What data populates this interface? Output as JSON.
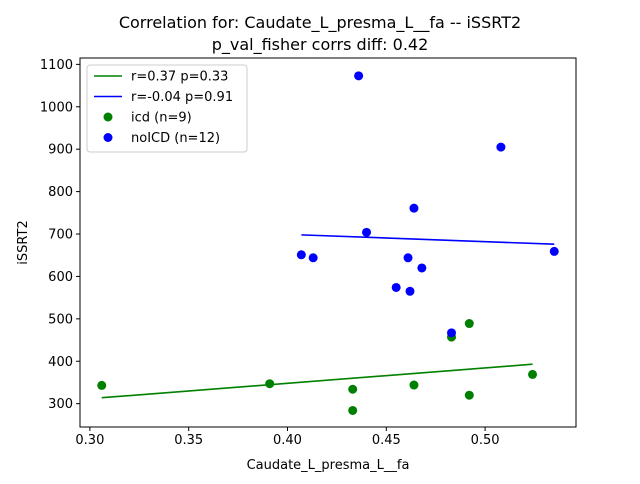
{
  "chart_data": {
    "type": "scatter",
    "title": "Correlation for: Caudate_L_presma_L__fa -- iSSRT2",
    "subtitle": "p_val_fisher corrs diff: 0.42",
    "xlabel": "Caudate_L_presma_L__fa",
    "ylabel": "iSSRT2",
    "xlim": [
      0.295,
      0.546
    ],
    "ylim": [
      245,
      1115
    ],
    "x_ticks": [
      0.3,
      0.35,
      0.4,
      0.45,
      0.5
    ],
    "x_tick_labels": [
      "0.30",
      "0.35",
      "0.40",
      "0.45",
      "0.50"
    ],
    "y_ticks": [
      300,
      400,
      500,
      600,
      700,
      800,
      900,
      1000,
      1100
    ],
    "y_tick_labels": [
      "300",
      "400",
      "500",
      "600",
      "700",
      "800",
      "900",
      "1000",
      "1100"
    ],
    "grid": false,
    "legend_position": "top-left",
    "series": [
      {
        "name": "icd (n=9)",
        "color": "#008000",
        "points": [
          [
            0.306,
            343
          ],
          [
            0.391,
            347
          ],
          [
            0.433,
            334
          ],
          [
            0.433,
            284
          ],
          [
            0.464,
            344
          ],
          [
            0.483,
            457
          ],
          [
            0.492,
            489
          ],
          [
            0.492,
            320
          ],
          [
            0.524,
            369
          ]
        ]
      },
      {
        "name": "noICD (n=12)",
        "color": "#0000ff",
        "points": [
          [
            0.436,
            1073
          ],
          [
            0.508,
            905
          ],
          [
            0.464,
            761
          ],
          [
            0.44,
            704
          ],
          [
            0.407,
            651
          ],
          [
            0.413,
            644
          ],
          [
            0.461,
            644
          ],
          [
            0.468,
            620
          ],
          [
            0.455,
            574
          ],
          [
            0.462,
            565
          ],
          [
            0.483,
            467
          ],
          [
            0.535,
            659
          ]
        ]
      }
    ],
    "fit_lines": [
      {
        "name": "r=0.37 p=0.33",
        "color": "#008000",
        "x": [
          0.306,
          0.524
        ],
        "y": [
          314,
          393
        ]
      },
      {
        "name": "r=-0.04 p=0.91",
        "color": "#0000ff",
        "x": [
          0.407,
          0.535
        ],
        "y": [
          698,
          676
        ]
      }
    ]
  }
}
